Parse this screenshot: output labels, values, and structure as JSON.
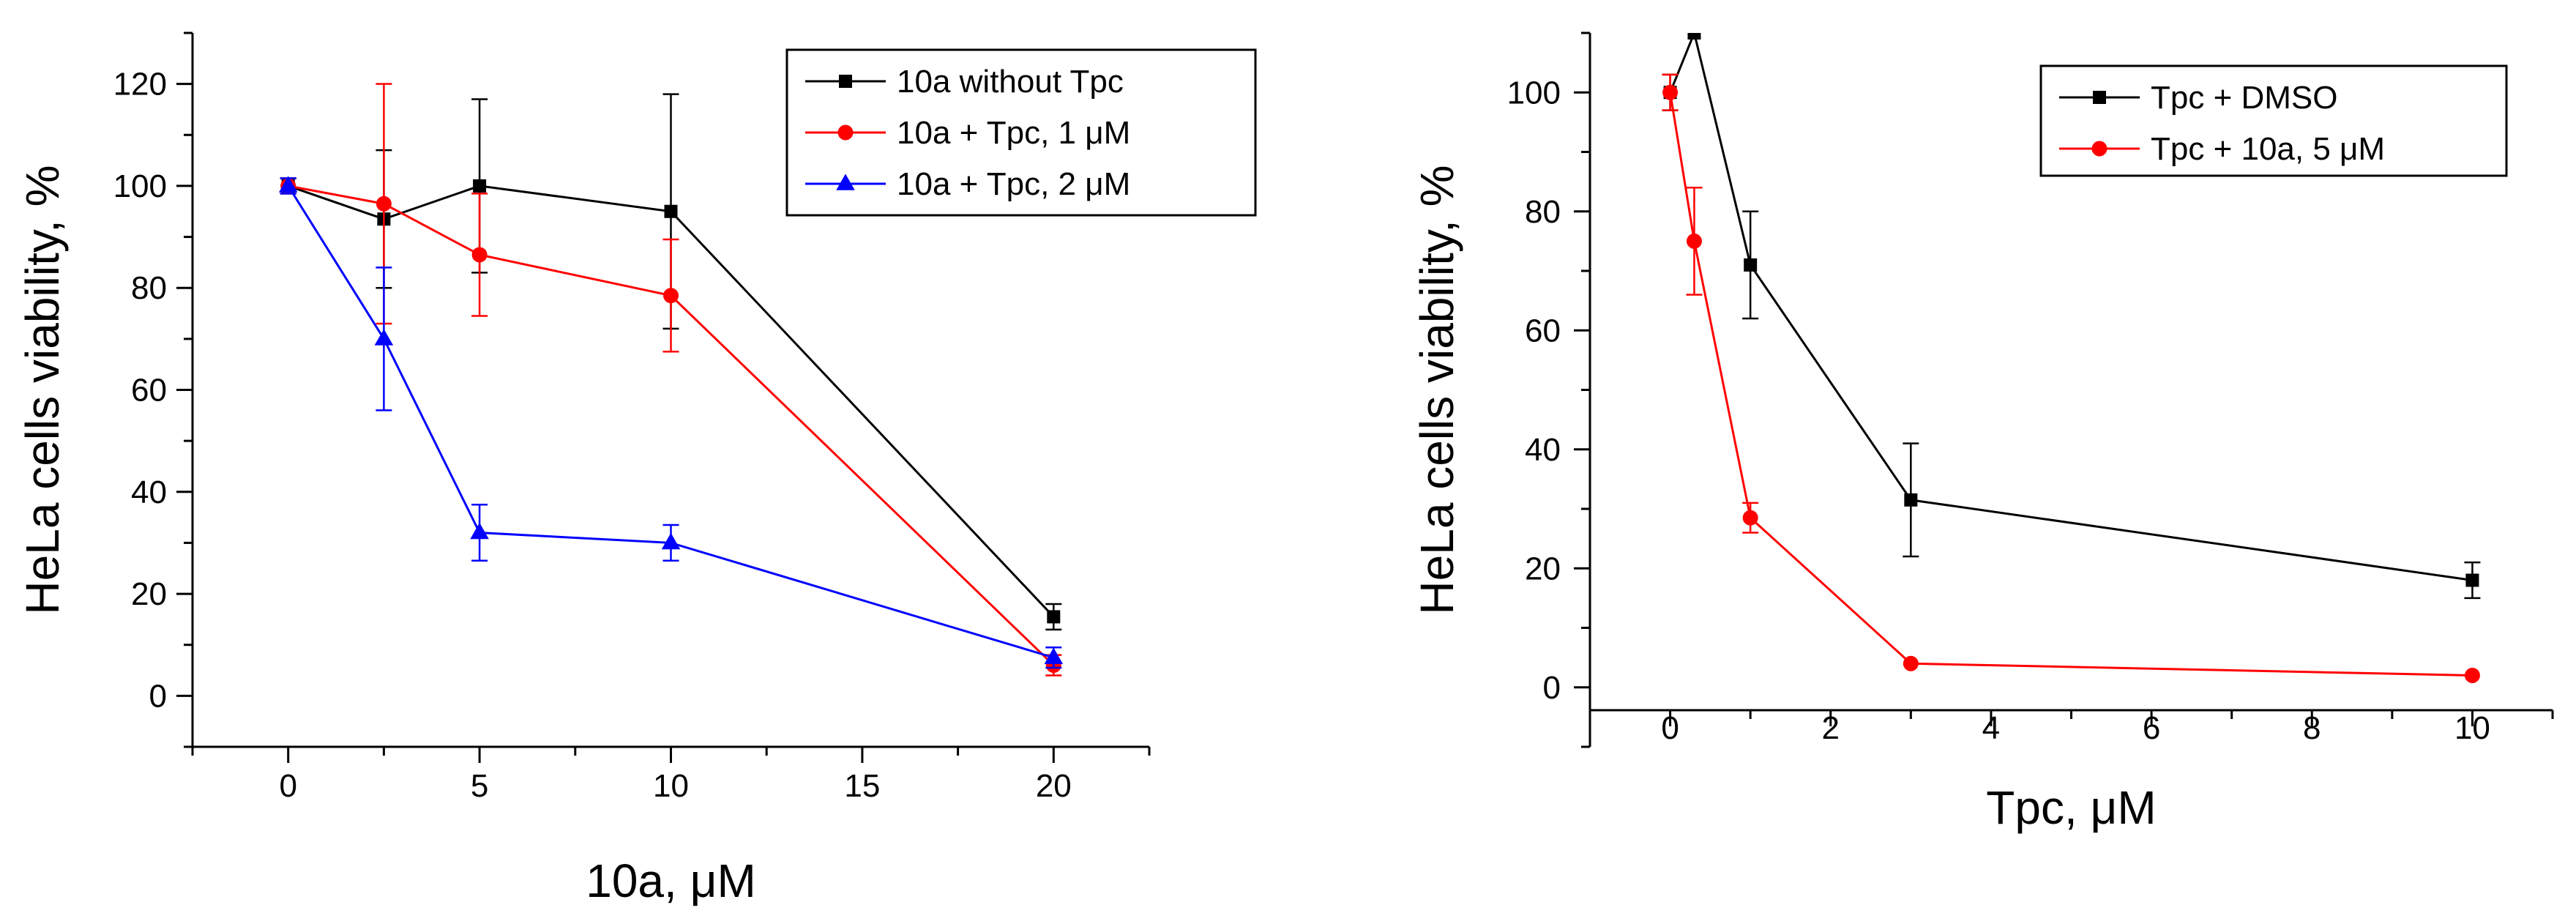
{
  "chart_data": [
    {
      "type": "line",
      "xlabel": "10a, μM",
      "ylabel": "HeLa cells viability, %",
      "xlim": [
        -2.5,
        22.5
      ],
      "ylim": [
        -10,
        130
      ],
      "xticks": [
        0,
        5,
        10,
        15,
        20
      ],
      "yticks": [
        0,
        20,
        40,
        60,
        80,
        100,
        120
      ],
      "legend_position": "top-right",
      "series": [
        {
          "name": "10a without Tpc",
          "color": "#000000",
          "marker": "square",
          "x": [
            0,
            2.5,
            5,
            10,
            20
          ],
          "values": [
            100,
            93.5,
            100,
            95,
            15.5
          ],
          "errors": [
            1.5,
            13.5,
            17,
            23,
            2.5
          ]
        },
        {
          "name": "10a + Tpc, 1 μM",
          "color": "#ff0000",
          "marker": "circle",
          "x": [
            0,
            2.5,
            5,
            10,
            20
          ],
          "values": [
            100,
            96.5,
            86.5,
            78.5,
            6
          ],
          "errors": [
            1.5,
            23.5,
            12,
            11,
            2
          ]
        },
        {
          "name": "10a + Tpc, 2 μM",
          "color": "#0000ff",
          "marker": "triangle",
          "x": [
            0,
            2.5,
            5,
            10,
            20
          ],
          "values": [
            100,
            70,
            32,
            30,
            7.5
          ],
          "errors": [
            1.5,
            14,
            5.5,
            3.5,
            2
          ]
        }
      ]
    },
    {
      "type": "line",
      "xlabel": "Tpc, μM",
      "ylabel": "HeLa cells viability, %",
      "xlim": [
        -1,
        11
      ],
      "ylim": [
        -10,
        110
      ],
      "xticks": [
        0,
        2,
        4,
        6,
        8,
        10
      ],
      "yticks": [
        0,
        20,
        40,
        60,
        80,
        100
      ],
      "legend_position": "top-right",
      "series": [
        {
          "name": "Tpc + DMSO",
          "color": "#000000",
          "marker": "square",
          "x": [
            0,
            0.3,
            1,
            3,
            10
          ],
          "values": [
            100,
            110,
            71,
            31.5,
            18
          ],
          "errors": [
            3,
            0,
            9,
            9.5,
            3
          ]
        },
        {
          "name": "Tpc + 10a, 5 μM",
          "color": "#ff0000",
          "marker": "circle",
          "x": [
            0,
            0.3,
            1,
            3,
            10
          ],
          "values": [
            100,
            75,
            28.5,
            4,
            2
          ],
          "errors": [
            3,
            9,
            2.5,
            0,
            0
          ]
        }
      ]
    }
  ]
}
